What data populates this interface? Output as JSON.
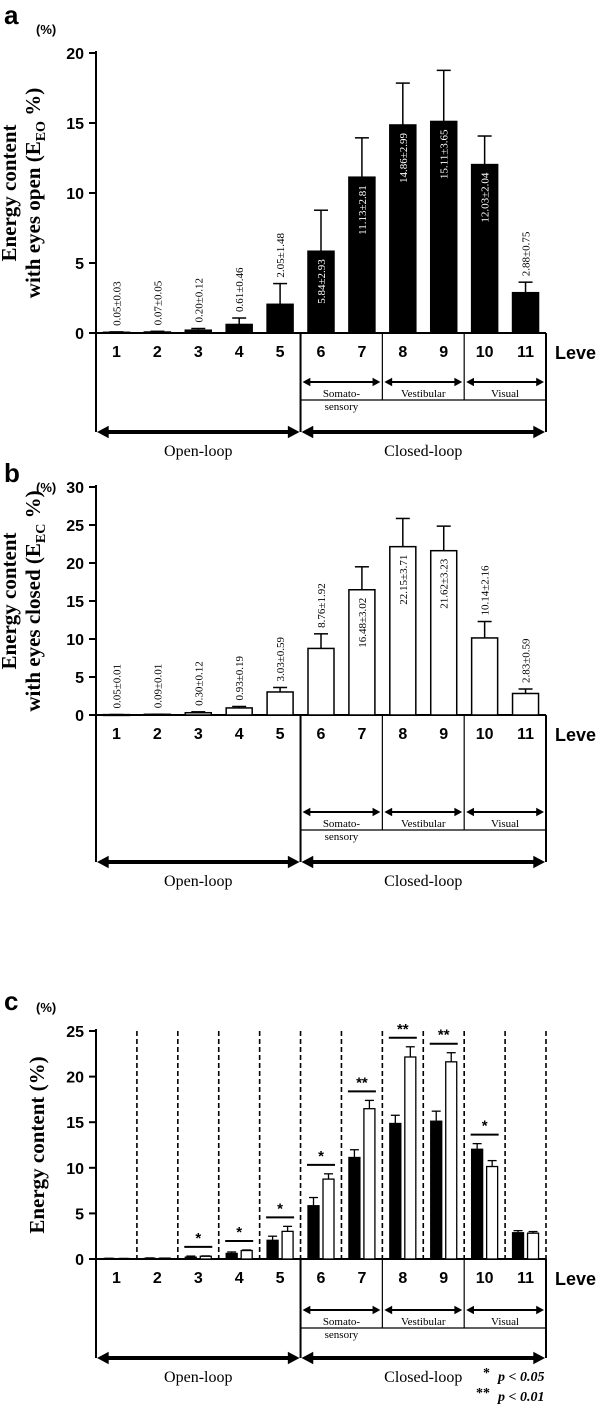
{
  "chart_data": [
    {
      "type": "bar",
      "panel_label": "a",
      "unit_label": "(%)",
      "ylabel_line1": "Energy content",
      "ylabel_line2": "with eyes open (E",
      "ylabel_sub": "EO",
      "ylabel_end": " %)",
      "xlabel": "Level",
      "categories": [
        "1",
        "2",
        "3",
        "4",
        "5",
        "6",
        "7",
        "8",
        "9",
        "10",
        "11"
      ],
      "values": [
        0.05,
        0.07,
        0.2,
        0.61,
        2.05,
        5.84,
        11.13,
        14.86,
        15.11,
        12.03,
        2.88
      ],
      "errors": [
        0.03,
        0.05,
        0.12,
        0.46,
        1.48,
        2.93,
        2.81,
        2.99,
        3.65,
        2.04,
        0.75
      ],
      "value_labels": [
        "0.05±0.03",
        "0.07±0.05",
        "0.20±0.12",
        "0.61±0.46",
        "2.05±1.48",
        "5.84±2.93",
        "11.13±2.81",
        "14.86±2.99",
        "15.11±3.65",
        "12.03±2.04",
        "2.88±0.75"
      ],
      "bar_color": "#000000",
      "ylim": [
        0,
        20
      ],
      "yticks": [
        "0",
        "5",
        "10",
        "15",
        "20"
      ],
      "subgroups": [
        "Somato-",
        "sensory",
        "Vestibular",
        "Visual"
      ],
      "groups": [
        "Open-loop",
        "Closed-loop"
      ]
    },
    {
      "type": "bar",
      "panel_label": "b",
      "unit_label": "(%)",
      "ylabel_line1": "Energy content",
      "ylabel_line2": "with eyes closed (E",
      "ylabel_sub": "EC",
      "ylabel_end": " %)",
      "xlabel": "Level",
      "categories": [
        "1",
        "2",
        "3",
        "4",
        "5",
        "6",
        "7",
        "8",
        "9",
        "10",
        "11"
      ],
      "values": [
        0.05,
        0.09,
        0.3,
        0.93,
        3.03,
        8.76,
        16.48,
        22.15,
        21.62,
        10.14,
        2.83
      ],
      "errors": [
        0.01,
        0.01,
        0.12,
        0.19,
        0.59,
        1.92,
        3.02,
        3.71,
        3.23,
        2.16,
        0.59
      ],
      "value_labels": [
        "0.05±0.01",
        "0.09±0.01",
        "0.30±0.12",
        "0.93±0.19",
        "3.03±0.59",
        "8.76±1.92",
        "16.48±3.02",
        "22.15±3.71",
        "21.62±3.23",
        "10.14±2.16",
        "2.83±0.59"
      ],
      "bar_color": "#ffffff",
      "ylim": [
        0,
        30
      ],
      "yticks": [
        "0",
        "5",
        "10",
        "15",
        "20",
        "25",
        "30"
      ],
      "subgroups": [
        "Somato-",
        "sensory",
        "Vestibular",
        "Visual"
      ],
      "groups": [
        "Open-loop",
        "Closed-loop"
      ]
    },
    {
      "type": "bar",
      "panel_label": "c",
      "unit_label": "(%)",
      "ylabel": "Energy content (%)",
      "xlabel": "Level",
      "categories": [
        "1",
        "2",
        "3",
        "4",
        "5",
        "6",
        "7",
        "8",
        "9",
        "10",
        "11"
      ],
      "ylim": [
        0,
        25
      ],
      "yticks": [
        "0",
        "5",
        "10",
        "15",
        "20",
        "25"
      ],
      "series": [
        {
          "values": [
            0.05,
            0.07,
            0.2,
            0.61,
            2.05,
            5.84,
            11.13,
            14.86,
            15.11,
            12.03,
            2.88
          ],
          "errors": [
            0.03,
            0.05,
            0.12,
            0.16,
            0.45,
            0.9,
            0.85,
            0.9,
            1.1,
            0.62,
            0.23
          ],
          "color": "#000000"
        },
        {
          "values": [
            0.05,
            0.09,
            0.3,
            0.93,
            3.03,
            8.76,
            16.48,
            22.15,
            21.62,
            10.14,
            2.83
          ],
          "errors": [
            0.01,
            0.01,
            0.04,
            0.06,
            0.55,
            0.58,
            0.91,
            1.12,
            1.0,
            0.65,
            0.18
          ],
          "color": "#ffffff"
        }
      ],
      "significance": [
        "",
        "",
        "*",
        "*",
        "*",
        "*",
        "**",
        "**",
        "**",
        "*",
        ""
      ],
      "subgroups": [
        "Somato-",
        "sensory",
        "Vestibular",
        "Visual"
      ],
      "groups": [
        "Open-loop",
        "Closed-loop"
      ],
      "legend": [
        {
          "mark": "*",
          "text": "p < 0.05"
        },
        {
          "mark": "**",
          "text": "p < 0.01"
        }
      ]
    }
  ]
}
